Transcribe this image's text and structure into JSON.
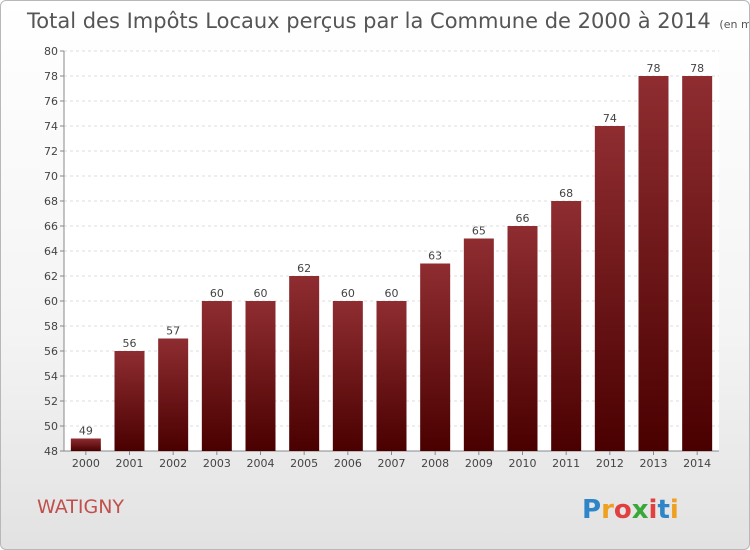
{
  "chart_data": {
    "type": "bar",
    "title": "Total des Impôts Locaux perçus par la Commune de 2000 à 2014",
    "unit": "(en milliers d'€)",
    "categories": [
      "2000",
      "2001",
      "2002",
      "2003",
      "2004",
      "2005",
      "2006",
      "2007",
      "2008",
      "2009",
      "2010",
      "2011",
      "2012",
      "2013",
      "2014"
    ],
    "values": [
      49,
      56,
      57,
      60,
      60,
      62,
      60,
      60,
      63,
      65,
      66,
      68,
      74,
      78,
      78
    ],
    "ylim": [
      48,
      80
    ],
    "yticks": [
      48,
      50,
      52,
      54,
      56,
      58,
      60,
      62,
      64,
      66,
      68,
      70,
      72,
      74,
      76,
      78,
      80
    ],
    "grid": true,
    "bar_color": "#8b1a1a"
  },
  "commune": "WATIGNY",
  "brand": {
    "letters": [
      "P",
      "r",
      "o",
      "x",
      "i",
      "t",
      "i"
    ],
    "colors": [
      "#2e86c8",
      "#f0a020",
      "#e04040",
      "#38a838",
      "#e04040",
      "#2e86c8",
      "#f0a020"
    ]
  }
}
